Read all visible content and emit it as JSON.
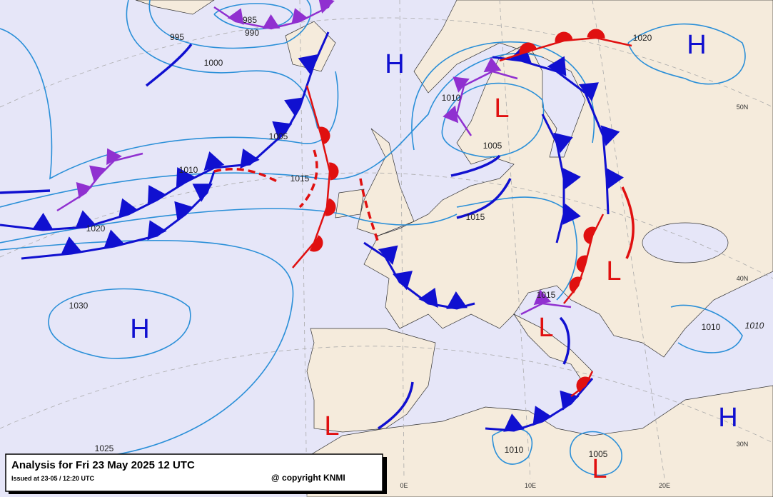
{
  "title": "Analysis for Fri 23 May 2025 12 UTC",
  "issued": "Issued at 23-05 / 12:20 UTC",
  "copyright": "@ copyright KNMI",
  "pressure_centers": [
    "H",
    "H",
    "H",
    "H",
    "L",
    "L",
    "L",
    "L",
    "L"
  ],
  "isobar_labels": [
    "985",
    "990",
    "995",
    "1000",
    "1005",
    "1010",
    "1015",
    "1020",
    "1030",
    "1025",
    "1010",
    "1005",
    "1015",
    "1015",
    "1020",
    "1010",
    "1010",
    "1010",
    "1005"
  ],
  "graticule_labels": [
    "50N",
    "40N",
    "30N",
    "0E",
    "10E",
    "20E"
  ]
}
